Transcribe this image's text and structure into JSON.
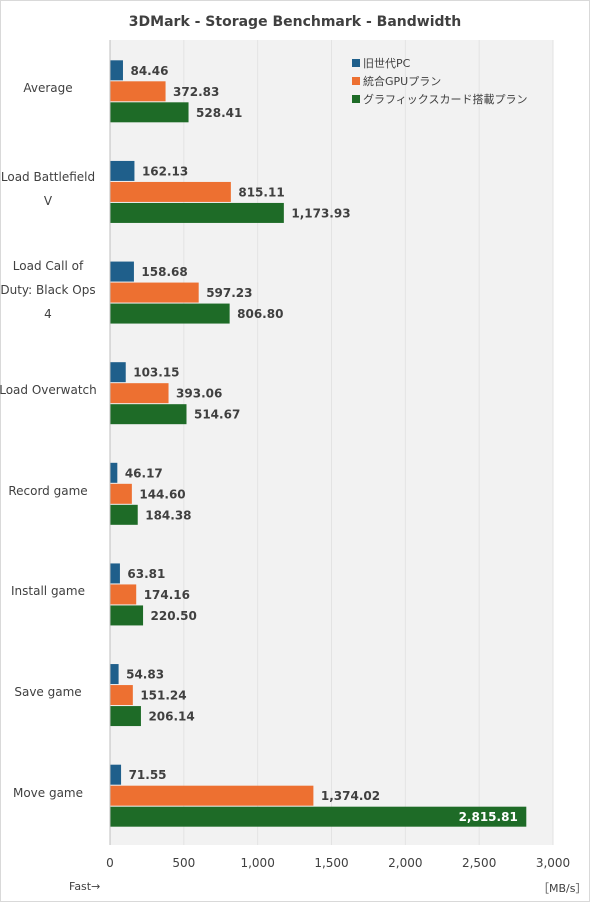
{
  "chart_data": {
    "type": "bar",
    "orientation": "horizontal",
    "title": "3DMark - Storage Benchmark - Bandwidth",
    "categories": [
      [
        "Average"
      ],
      [
        "Load Battlefield",
        "V"
      ],
      [
        "Load Call of",
        "Duty: Black Ops",
        "4"
      ],
      [
        "Load Overwatch"
      ],
      [
        "Record game"
      ],
      [
        "Install game"
      ],
      [
        "Save game"
      ],
      [
        "Move game"
      ]
    ],
    "series": [
      {
        "name": "旧世代PC",
        "color": "#1f5f8b",
        "values": [
          84.46,
          162.13,
          158.68,
          103.15,
          46.17,
          63.81,
          54.83,
          71.55
        ],
        "labels": [
          "84.46",
          "162.13",
          "158.68",
          "103.15",
          "46.17",
          "63.81",
          "54.83",
          "71.55"
        ]
      },
      {
        "name": "統合GPUプラン",
        "color": "#ed7031",
        "values": [
          372.83,
          815.11,
          597.23,
          393.06,
          144.6,
          174.16,
          151.24,
          1374.02
        ],
        "labels": [
          "372.83",
          "815.11",
          "597.23",
          "393.06",
          "144.60",
          "174.16",
          "151.24",
          "1,374.02"
        ]
      },
      {
        "name": "グラフィックスカード搭載プラン",
        "color": "#1e6b27",
        "values": [
          528.41,
          1173.93,
          806.8,
          514.67,
          184.38,
          220.5,
          206.14,
          2815.81
        ],
        "labels": [
          "528.41",
          "1,173.93",
          "806.80",
          "514.67",
          "184.38",
          "220.50",
          "206.14",
          "2,815.81"
        ]
      }
    ],
    "xlim": [
      0,
      3000
    ],
    "xticks": [
      0,
      500,
      1000,
      1500,
      2000,
      2500,
      3000
    ],
    "xtick_labels": [
      "0",
      "500",
      "1,000",
      "1,500",
      "2,000",
      "2,500",
      "3,000"
    ],
    "grid": true,
    "legend_position": "top-right"
  },
  "footer": {
    "direction_note": "Fast→",
    "unit": "［MB/s］"
  }
}
